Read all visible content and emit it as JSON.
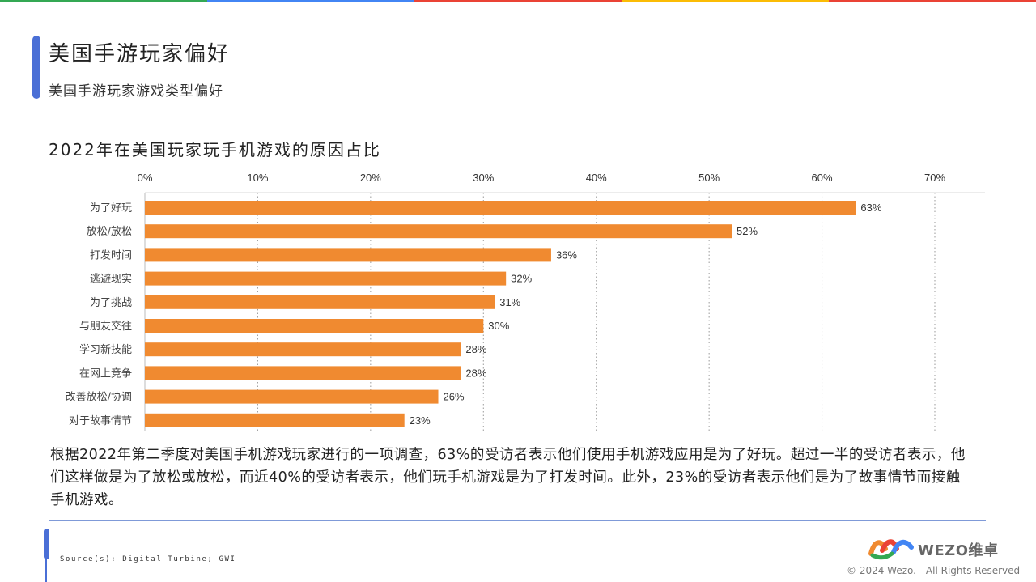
{
  "colors": {
    "accent": "#4a6fd6",
    "bar": "#f08a30",
    "topbar": [
      "#34a853",
      "#4285f4",
      "#ea4335",
      "#fbbc05",
      "#ea4335"
    ]
  },
  "header": {
    "title": "美国手游玩家偏好",
    "subtitle": "美国手游玩家游戏类型偏好"
  },
  "chart_data": {
    "type": "bar",
    "orientation": "horizontal",
    "title": "2022年在美国玩家玩手机游戏的原因占比",
    "categories": [
      "为了好玩",
      "放松/放松",
      "打发时间",
      "逃避现实",
      "为了挑战",
      "与朋友交往",
      "学习新技能",
      "在网上竞争",
      "改善放松/协调",
      "对于故事情节"
    ],
    "values": [
      63,
      52,
      36,
      32,
      31,
      30,
      28,
      28,
      26,
      23
    ],
    "value_labels": [
      "63%",
      "52%",
      "36%",
      "32%",
      "31%",
      "30%",
      "28%",
      "28%",
      "26%",
      "23%"
    ],
    "xlim": [
      0,
      70
    ],
    "ticks": [
      0,
      10,
      20,
      30,
      40,
      50,
      60,
      70
    ],
    "tick_labels": [
      "0%",
      "10%",
      "20%",
      "30%",
      "40%",
      "50%",
      "60%",
      "70%"
    ],
    "axis_position": "top",
    "grid": "vertical-dotted",
    "legend": "none"
  },
  "description": "根据2022年第二季度对美国手机游戏玩家进行的一项调查，63%的受访者表示他们使用手机游戏应用是为了好玩。超过一半的受访者表示，他们这样做是为了放松或放松，而近40%的受访者表示，他们玩手机游戏是为了打发时间。此外，23%的受访者表示他们是为了故事情节而接触手机游戏。",
  "footer": {
    "source": "Source(s): Digital Turbine; GWI",
    "logo_text": "WEZO维卓",
    "copyright": "© 2024 Wezo. - All Rights Reserved"
  }
}
